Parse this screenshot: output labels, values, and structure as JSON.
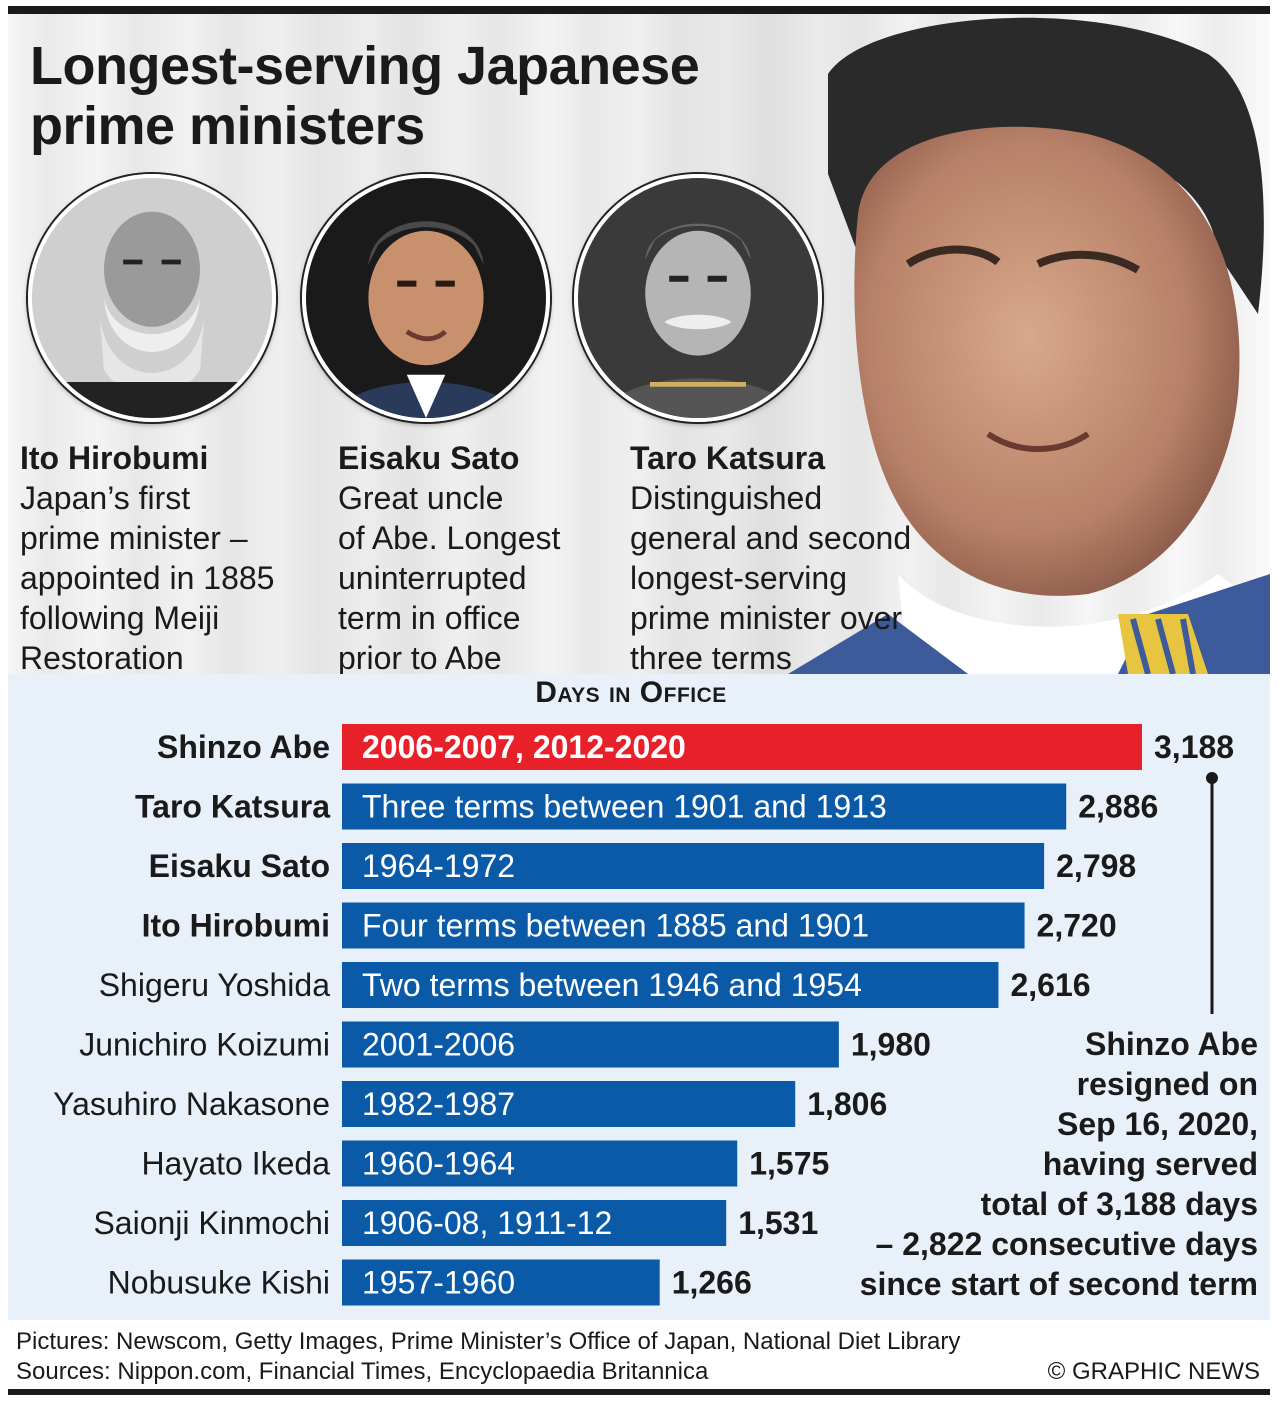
{
  "title": {
    "line1": "Longest-serving Japanese",
    "line2": "prime ministers"
  },
  "profiles": [
    {
      "name": "Ito Hirobumi",
      "desc": [
        "Japan’s first",
        "prime minister –",
        "appointed in 1885",
        "following Meiji",
        "Restoration"
      ]
    },
    {
      "name": "Eisaku Sato",
      "desc": [
        "Great uncle",
        "of Abe. Longest",
        "uninterrupted",
        "term in office",
        "prior to Abe"
      ]
    },
    {
      "name": "Taro Katsura",
      "desc": [
        "Distinguished",
        "general and second",
        "longest-serving",
        "prime minister over",
        "three terms"
      ]
    }
  ],
  "chart_data": {
    "type": "bar",
    "orientation": "horizontal",
    "title": "Days in Office",
    "categories": [
      "Shinzo Abe",
      "Taro Katsura",
      "Eisaku Sato",
      "Ito Hirobumi",
      "Shigeru Yoshida",
      "Junichiro Koizumi",
      "Yasuhiro Nakasone",
      "Hayato Ikeda",
      "Saionji Kinmochi",
      "Nobusuke Kishi"
    ],
    "values": [
      3188,
      2886,
      2798,
      2720,
      2616,
      1980,
      1806,
      1575,
      1531,
      1266
    ],
    "value_labels": [
      "3,188",
      "2,886",
      "2,798",
      "2,720",
      "2,616",
      "1,980",
      "1,806",
      "1,575",
      "1,531",
      "1,266"
    ],
    "bar_labels": [
      "2006-2007, 2012-2020",
      "Three terms between 1901 and 1913",
      "1964-1972",
      "Four terms between 1885 and 1901",
      "Two terms between 1946 and 1954",
      "2001-2006",
      "1982-1987",
      "1960-1964",
      "1906-08, 1911-12",
      "1957-1960"
    ],
    "bold_names": [
      true,
      true,
      true,
      true,
      false,
      false,
      false,
      false,
      false,
      false
    ],
    "colors": {
      "highlight": "#e8202a",
      "bar": "#0a5aa8",
      "panel": "#e8f0f9"
    }
  },
  "note": [
    "Shinzo Abe",
    "resigned on",
    "Sep 16, 2020,",
    "having served",
    "total of 3,188 days",
    "– 2,822 consecutive days",
    "since start of second term"
  ],
  "footer": {
    "pictures": "Pictures: Newscom, Getty Images, Prime Minister’s Office of Japan, National Diet Library",
    "sources": "Sources: Nippon.com, Financial Times, Encyclopaedia Britannica",
    "credit": "© GRAPHIC NEWS"
  }
}
